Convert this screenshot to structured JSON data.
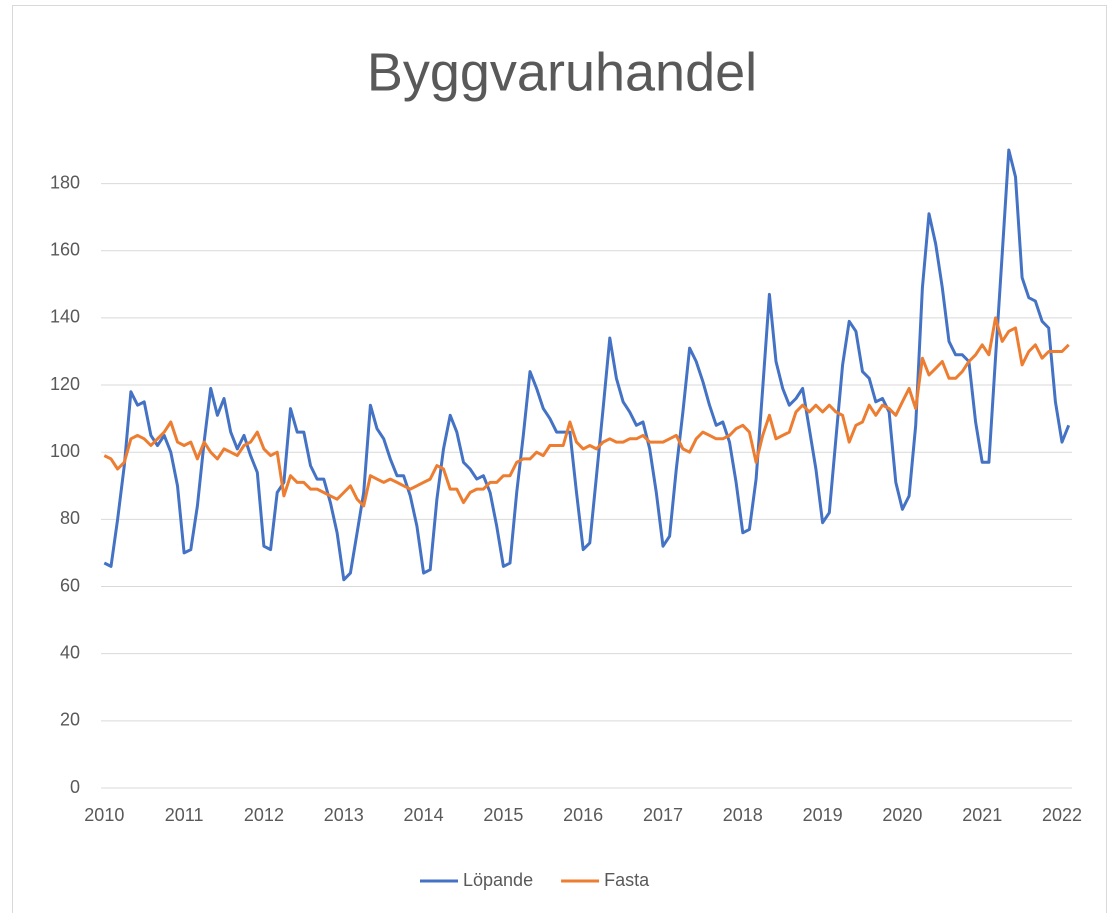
{
  "chart_data": {
    "type": "line",
    "title": "Byggvaruhandel",
    "categories": [
      "2010",
      null,
      null,
      null,
      null,
      null,
      null,
      null,
      null,
      null,
      null,
      null,
      "2011",
      null,
      null,
      null,
      null,
      null,
      null,
      null,
      null,
      null,
      null,
      null,
      "2012",
      null,
      null,
      null,
      null,
      null,
      null,
      null,
      null,
      null,
      null,
      null,
      "2013",
      null,
      null,
      null,
      null,
      null,
      null,
      null,
      null,
      null,
      null,
      null,
      "2014",
      null,
      null,
      null,
      null,
      null,
      null,
      null,
      null,
      null,
      null,
      null,
      "2015",
      null,
      null,
      null,
      null,
      null,
      null,
      null,
      null,
      null,
      null,
      null,
      "2016",
      null,
      null,
      null,
      null,
      null,
      null,
      null,
      null,
      null,
      null,
      null,
      "2017",
      null,
      null,
      null,
      null,
      null,
      null,
      null,
      null,
      null,
      null,
      null,
      "2018",
      null,
      null,
      null,
      null,
      null,
      null,
      null,
      null,
      null,
      null,
      null,
      "2019",
      null,
      null,
      null,
      null,
      null,
      null,
      null,
      null,
      null,
      null,
      null,
      "2020",
      null,
      null,
      null,
      null,
      null,
      null,
      null,
      null,
      null,
      null,
      null,
      "2021",
      null,
      null,
      null,
      null,
      null,
      null,
      null,
      null,
      null,
      null,
      null,
      "2022",
      null
    ],
    "series": [
      {
        "name": "Löpande",
        "color": "#4472c4",
        "values": [
          67,
          66,
          80,
          96,
          118,
          114,
          115,
          105,
          102,
          105,
          100,
          90,
          70,
          71,
          84,
          103,
          119,
          111,
          116,
          106,
          101,
          105,
          99,
          94,
          72,
          71,
          88,
          91,
          113,
          106,
          106,
          96,
          92,
          92,
          85,
          76,
          62,
          64,
          76,
          88,
          114,
          107,
          104,
          98,
          93,
          93,
          87,
          78,
          64,
          65,
          86,
          101,
          111,
          106,
          97,
          95,
          92,
          93,
          88,
          78,
          66,
          67,
          88,
          105,
          124,
          119,
          113,
          110,
          106,
          106,
          106,
          88,
          71,
          73,
          93,
          113,
          134,
          122,
          115,
          112,
          108,
          109,
          101,
          88,
          72,
          75,
          95,
          112,
          131,
          127,
          121,
          114,
          108,
          109,
          103,
          91,
          76,
          77,
          92,
          119,
          147,
          127,
          119,
          114,
          116,
          119,
          107,
          95,
          79,
          82,
          104,
          126,
          139,
          136,
          124,
          122,
          115,
          116,
          112,
          91,
          83,
          87,
          108,
          149,
          171,
          162,
          149,
          133,
          129,
          129,
          127,
          109,
          97,
          97,
          128,
          159,
          190,
          182,
          152,
          146,
          145,
          139,
          137,
          115,
          103,
          108
        ]
      },
      {
        "name": "Fasta",
        "color": "#ed7d31",
        "values": [
          99,
          98,
          95,
          97,
          104,
          105,
          104,
          102,
          104,
          106,
          109,
          103,
          102,
          103,
          98,
          103,
          100,
          98,
          101,
          100,
          99,
          102,
          103,
          106,
          101,
          99,
          100,
          87,
          93,
          91,
          91,
          89,
          89,
          88,
          87,
          86,
          88,
          90,
          86,
          84,
          93,
          92,
          91,
          92,
          91,
          90,
          89,
          90,
          91,
          92,
          96,
          95,
          89,
          89,
          85,
          88,
          89,
          89,
          91,
          91,
          93,
          93,
          97,
          98,
          98,
          100,
          99,
          102,
          102,
          102,
          109,
          103,
          101,
          102,
          101,
          103,
          104,
          103,
          103,
          104,
          104,
          105,
          103,
          103,
          103,
          104,
          105,
          101,
          100,
          104,
          106,
          105,
          104,
          104,
          105,
          107,
          108,
          106,
          97,
          105,
          111,
          104,
          105,
          106,
          112,
          114,
          112,
          114,
          112,
          114,
          112,
          111,
          103,
          108,
          109,
          114,
          111,
          114,
          113,
          111,
          115,
          119,
          113,
          128,
          123,
          125,
          127,
          122,
          122,
          124,
          127,
          129,
          132,
          129,
          140,
          133,
          136,
          137,
          126,
          130,
          132,
          128,
          130,
          130,
          130,
          132
        ]
      }
    ],
    "ylim": [
      0,
      190
    ],
    "yticks": [
      0,
      20,
      40,
      60,
      80,
      100,
      120,
      140,
      160,
      180
    ],
    "grid": true,
    "legend": "bottom"
  }
}
